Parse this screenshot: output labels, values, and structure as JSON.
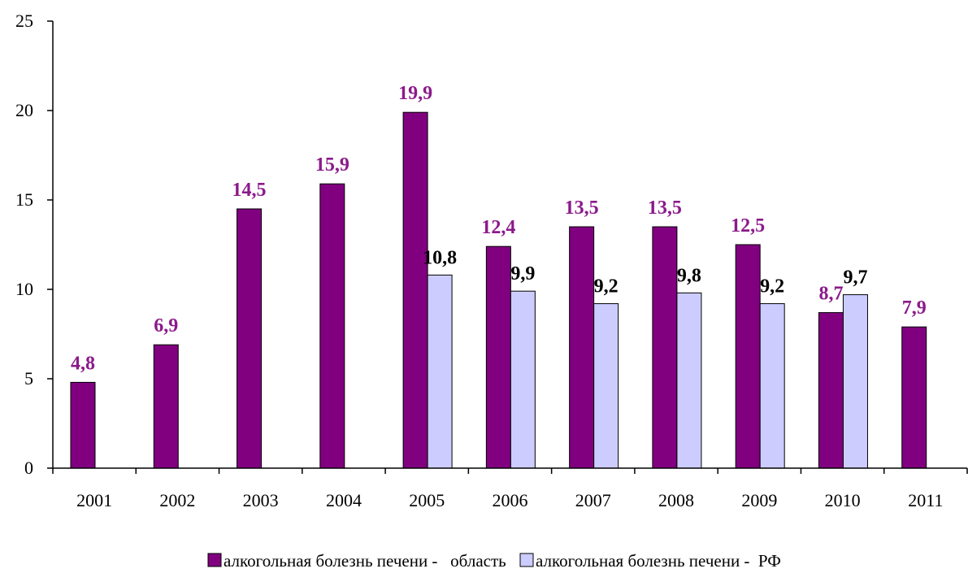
{
  "chart_data": {
    "type": "bar",
    "categories": [
      "2001",
      "2002",
      "2003",
      "2004",
      "2005",
      "2006",
      "2007",
      "2008",
      "2009",
      "2010",
      "2011"
    ],
    "series": [
      {
        "name": "алкогольная болезнь печени -   область",
        "values": [
          4.8,
          6.9,
          14.5,
          15.9,
          19.9,
          12.4,
          13.5,
          13.5,
          12.5,
          8.7,
          7.9
        ],
        "labels": [
          "4,8",
          "6,9",
          "14,5",
          "15,9",
          "19,9",
          "12,4",
          "13,5",
          "13,5",
          "12,5",
          "8,7",
          "7,9"
        ],
        "color": "#800080",
        "label_color": "#8B1A8B"
      },
      {
        "name": "алкогольная болезнь печени -  РФ",
        "values": [
          null,
          null,
          null,
          null,
          10.8,
          9.9,
          9.2,
          9.8,
          9.2,
          9.7,
          null
        ],
        "labels": [
          "",
          "",
          "",
          "",
          "10,8",
          "9,9",
          "9,2",
          "9,8",
          "9,2",
          "9,7",
          ""
        ],
        "color": "#CCCCFF",
        "label_color": "#000000"
      }
    ],
    "yticks": [
      "0",
      "5",
      "10",
      "15",
      "20",
      "25"
    ],
    "ylim": [
      0,
      25
    ],
    "legend_position": "bottom",
    "grid": false
  }
}
